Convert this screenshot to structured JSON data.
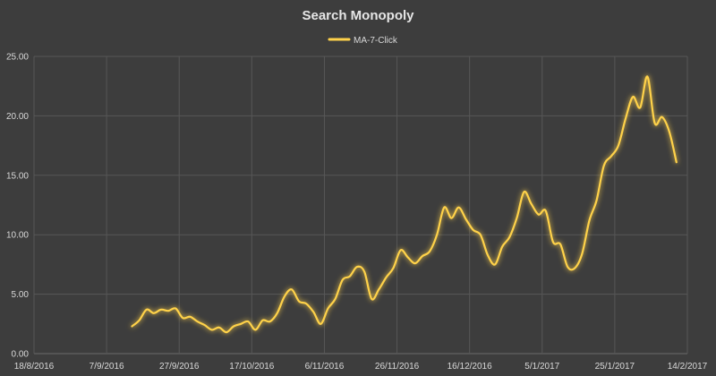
{
  "chart_data": {
    "type": "line",
    "title": "Search Monopoly",
    "xlabel": "",
    "ylabel": "",
    "legend_position": "top",
    "grid": true,
    "series_color": "#ffd24a",
    "background_color": "#3d3d3d",
    "y_ticks": [
      "0.00",
      "5.00",
      "10.00",
      "15.00",
      "20.00",
      "25.00"
    ],
    "ylim": [
      0,
      25
    ],
    "x_ticks": [
      "18/8/2016",
      "7/9/2016",
      "27/9/2016",
      "17/10/2016",
      "6/11/2016",
      "26/11/2016",
      "16/12/2016",
      "5/1/2017",
      "25/1/2017",
      "14/2/2017"
    ],
    "xlim": [
      "2016-08-18",
      "2017-02-14"
    ],
    "series": [
      {
        "name": "MA-7-Click",
        "points": [
          [
            "2016-09-14",
            2.3
          ],
          [
            "2016-09-16",
            2.8
          ],
          [
            "2016-09-18",
            3.7
          ],
          [
            "2016-09-20",
            3.4
          ],
          [
            "2016-09-22",
            3.7
          ],
          [
            "2016-09-24",
            3.6
          ],
          [
            "2016-09-26",
            3.8
          ],
          [
            "2016-09-28",
            3.0
          ],
          [
            "2016-09-30",
            3.1
          ],
          [
            "2016-10-02",
            2.7
          ],
          [
            "2016-10-04",
            2.4
          ],
          [
            "2016-10-06",
            2.0
          ],
          [
            "2016-10-08",
            2.2
          ],
          [
            "2016-10-10",
            1.8
          ],
          [
            "2016-10-12",
            2.3
          ],
          [
            "2016-10-14",
            2.5
          ],
          [
            "2016-10-16",
            2.7
          ],
          [
            "2016-10-18",
            2.0
          ],
          [
            "2016-10-20",
            2.8
          ],
          [
            "2016-10-22",
            2.7
          ],
          [
            "2016-10-24",
            3.4
          ],
          [
            "2016-10-26",
            4.8
          ],
          [
            "2016-10-28",
            5.4
          ],
          [
            "2016-10-30",
            4.4
          ],
          [
            "2016-11-01",
            4.2
          ],
          [
            "2016-11-03",
            3.5
          ],
          [
            "2016-11-05",
            2.5
          ],
          [
            "2016-11-07",
            3.8
          ],
          [
            "2016-11-09",
            4.6
          ],
          [
            "2016-11-11",
            6.2
          ],
          [
            "2016-11-13",
            6.5
          ],
          [
            "2016-11-15",
            7.3
          ],
          [
            "2016-11-17",
            6.9
          ],
          [
            "2016-11-19",
            4.6
          ],
          [
            "2016-11-21",
            5.4
          ],
          [
            "2016-11-23",
            6.4
          ],
          [
            "2016-11-25",
            7.2
          ],
          [
            "2016-11-27",
            8.7
          ],
          [
            "2016-11-29",
            8.1
          ],
          [
            "2016-12-01",
            7.6
          ],
          [
            "2016-12-03",
            8.2
          ],
          [
            "2016-12-05",
            8.6
          ],
          [
            "2016-12-07",
            10.0
          ],
          [
            "2016-12-09",
            12.3
          ],
          [
            "2016-12-11",
            11.4
          ],
          [
            "2016-12-13",
            12.3
          ],
          [
            "2016-12-15",
            11.3
          ],
          [
            "2016-12-17",
            10.4
          ],
          [
            "2016-12-19",
            10.0
          ],
          [
            "2016-12-21",
            8.3
          ],
          [
            "2016-12-23",
            7.5
          ],
          [
            "2016-12-25",
            9.0
          ],
          [
            "2016-12-27",
            9.8
          ],
          [
            "2016-12-29",
            11.4
          ],
          [
            "2016-12-31",
            13.6
          ],
          [
            "2017-01-02",
            12.6
          ],
          [
            "2017-01-04",
            11.7
          ],
          [
            "2017-01-06",
            12.0
          ],
          [
            "2017-01-08",
            9.4
          ],
          [
            "2017-01-10",
            9.2
          ],
          [
            "2017-01-12",
            7.3
          ],
          [
            "2017-01-14",
            7.2
          ],
          [
            "2017-01-16",
            8.4
          ],
          [
            "2017-01-18",
            11.2
          ],
          [
            "2017-01-20",
            12.9
          ],
          [
            "2017-01-22",
            15.8
          ],
          [
            "2017-01-24",
            16.6
          ],
          [
            "2017-01-26",
            17.5
          ],
          [
            "2017-01-28",
            19.8
          ],
          [
            "2017-01-30",
            21.6
          ],
          [
            "2017-02-01",
            20.7
          ],
          [
            "2017-02-03",
            23.3
          ],
          [
            "2017-02-05",
            19.4
          ],
          [
            "2017-02-07",
            19.9
          ],
          [
            "2017-02-09",
            18.7
          ],
          [
            "2017-02-11",
            16.1
          ]
        ]
      }
    ]
  }
}
